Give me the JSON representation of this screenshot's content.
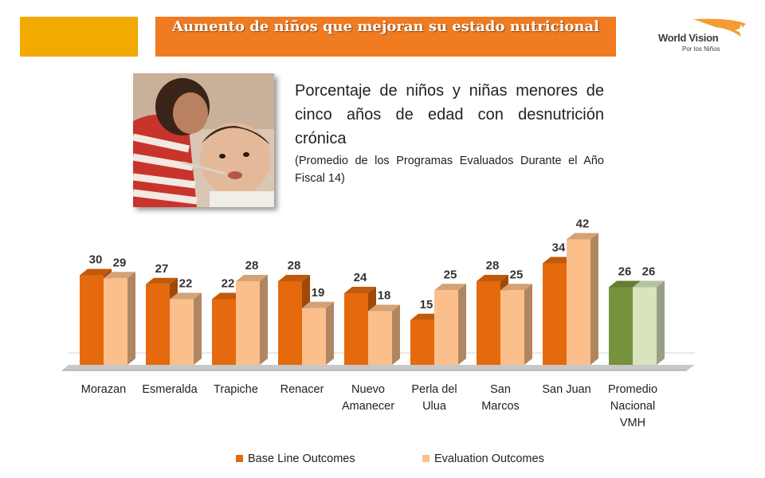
{
  "header": {
    "title": "Aumento de niños que mejoran su estado nutricional"
  },
  "logo": {
    "name": "World Vision",
    "tagline": "Por los Niños"
  },
  "photo": {
    "icon": "mother-feeding-child-photo"
  },
  "description": {
    "main": "Porcentaje de niños y niñas menores de cinco años de edad con desnutrición crónica",
    "sub": "(Promedio de los Programas Evaluados Durante el Año Fiscal 14)"
  },
  "colors": {
    "accent_orange": "#f07b21",
    "accent_yellow": "#f2a900",
    "baseline": "#e56a0d",
    "evaluation": "#fbbf8c",
    "national_baseline": "#76933c",
    "national_evaluation": "#d7e4bd"
  },
  "chart_data": {
    "type": "bar",
    "categories": [
      [
        "Morazan"
      ],
      [
        "Esmeralda"
      ],
      [
        "Trapiche"
      ],
      [
        "Renacer"
      ],
      [
        "Nuevo",
        "Amanecer"
      ],
      [
        "Perla del",
        "Ulua"
      ],
      [
        "San",
        "Marcos"
      ],
      [
        "San Juan"
      ],
      [
        "Promedio",
        "Nacional",
        "VMH"
      ]
    ],
    "series": [
      {
        "name": "Base Line Outcomes",
        "values": [
          30,
          27,
          22,
          28,
          24,
          15,
          28,
          34,
          26
        ]
      },
      {
        "name": "Evaluation Outcomes",
        "values": [
          29,
          22,
          28,
          19,
          18,
          25,
          25,
          42,
          26
        ]
      }
    ],
    "highlight_category_index": 8,
    "ylim": [
      0,
      42
    ],
    "legend_position": "bottom",
    "data_labels": true,
    "grid": false
  }
}
